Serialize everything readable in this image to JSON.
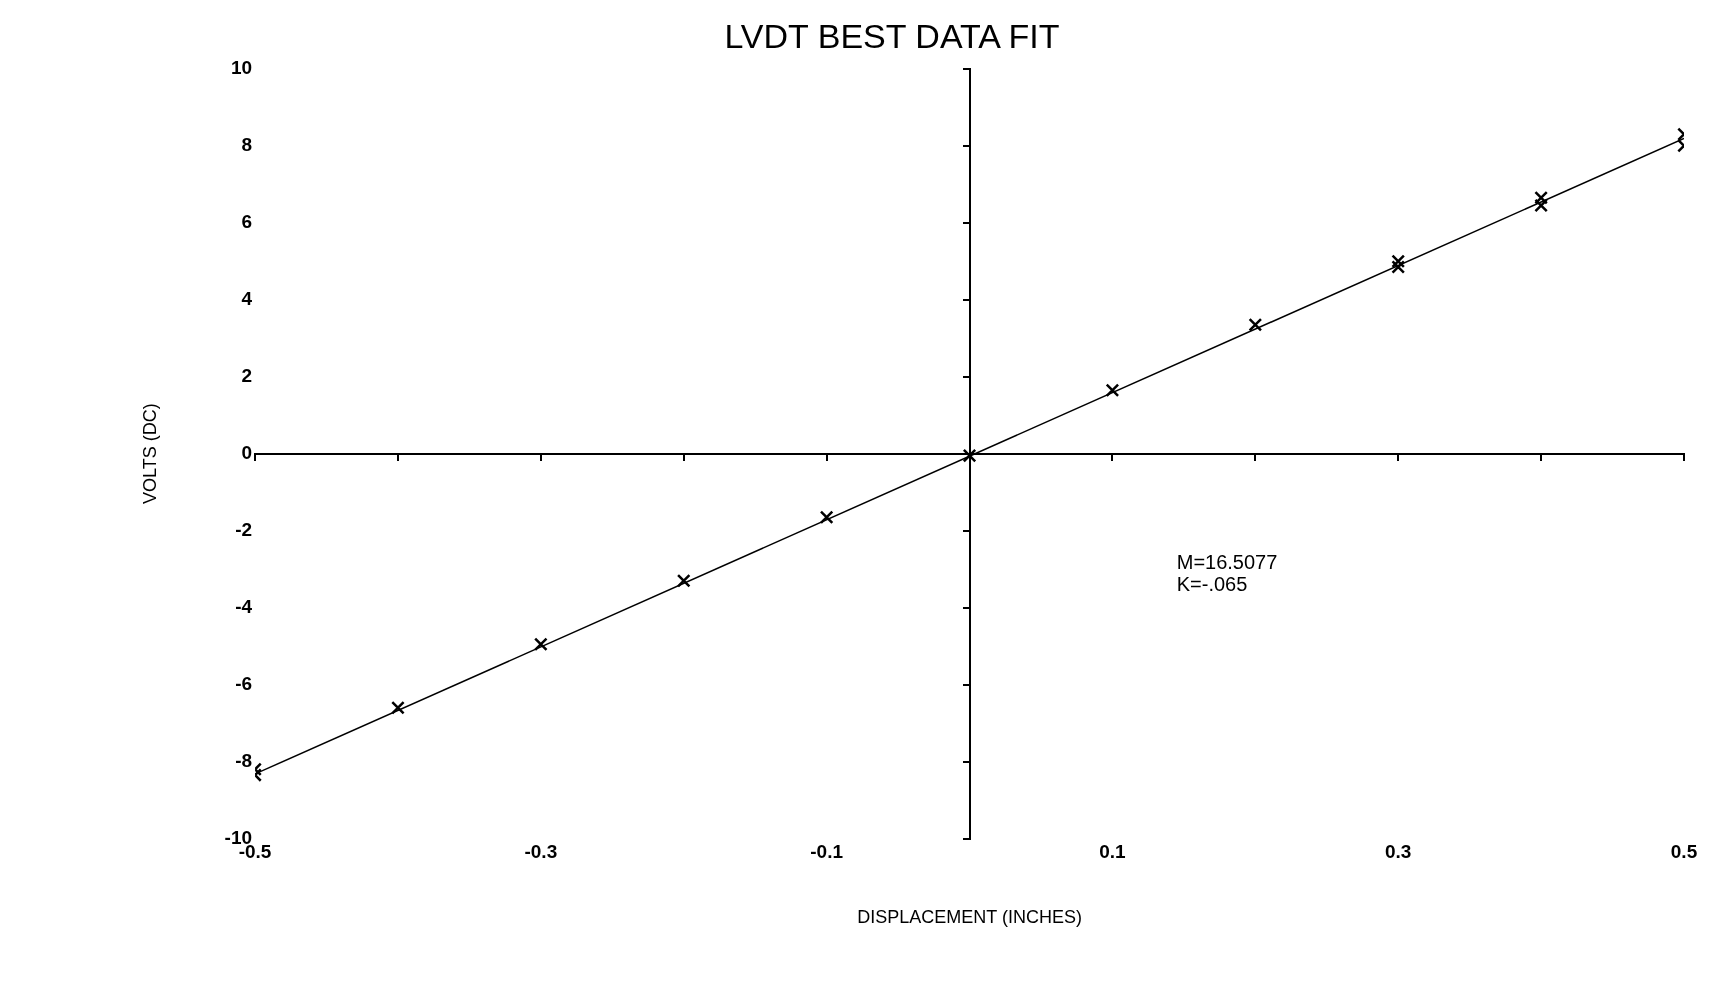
{
  "chart_data": {
    "type": "scatter",
    "title": "LVDT BEST DATA FIT",
    "xlabel": "DISPLACEMENT (INCHES)",
    "ylabel": "VOLTS (DC)",
    "xlim": [
      -0.5,
      0.5
    ],
    "ylim": [
      -10,
      10
    ],
    "xticks": [
      -0.5,
      {
        "value": -0.4,
        "label": null
      },
      -0.3,
      {
        "value": -0.2,
        "label": null
      },
      -0.1,
      {
        "value": 0,
        "label": null
      },
      0.1,
      {
        "value": 0.2,
        "label": null
      },
      0.3,
      {
        "value": 0.4,
        "label": null
      },
      0.5
    ],
    "yticks": [
      -10,
      -8,
      -6,
      -4,
      -2,
      0,
      2,
      4,
      6,
      8,
      10
    ],
    "legend": false,
    "marker": "cross",
    "series": [
      {
        "type": "scatter",
        "color": "#000000",
        "x": [
          -0.5,
          -0.5,
          -0.4,
          -0.3,
          -0.2,
          -0.1,
          0,
          0.1,
          0.2,
          0.3,
          0.3,
          0.4,
          0.4,
          0.5,
          0.5
        ],
        "values": [
          -8.2,
          -8.35,
          -6.6,
          -4.95,
          -3.3,
          -1.65,
          -0.05,
          1.65,
          3.35,
          5.0,
          4.85,
          6.65,
          6.45,
          8.3,
          8.0
        ]
      },
      {
        "type": "line",
        "color": "#000000",
        "marker": "none",
        "x": [
          -0.5,
          0.5
        ],
        "values": [
          -8.32,
          8.19
        ]
      }
    ],
    "annotations": [
      "M=16.5077\nK=-.065"
    ]
  }
}
